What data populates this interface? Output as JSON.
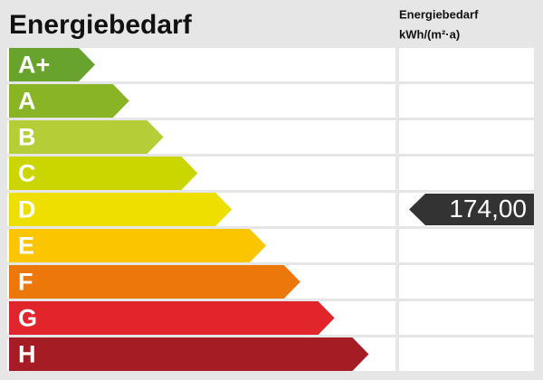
{
  "header": {
    "title": "Energiebedarf",
    "column_title": "Energiebedarf",
    "column_unit": "kWh/(m²·a)"
  },
  "classes": [
    {
      "label": "A+",
      "color": "#68a32e"
    },
    {
      "label": "A",
      "color": "#88b426"
    },
    {
      "label": "B",
      "color": "#b5cd37"
    },
    {
      "label": "C",
      "color": "#cbd500"
    },
    {
      "label": "D",
      "color": "#efdf00"
    },
    {
      "label": "E",
      "color": "#fbc600"
    },
    {
      "label": "F",
      "color": "#ec780c"
    },
    {
      "label": "G",
      "color": "#e2252a"
    },
    {
      "label": "H",
      "color": "#a51c24"
    }
  ],
  "indicator": {
    "class": "D",
    "value": "174,00",
    "color": "#333333"
  }
}
